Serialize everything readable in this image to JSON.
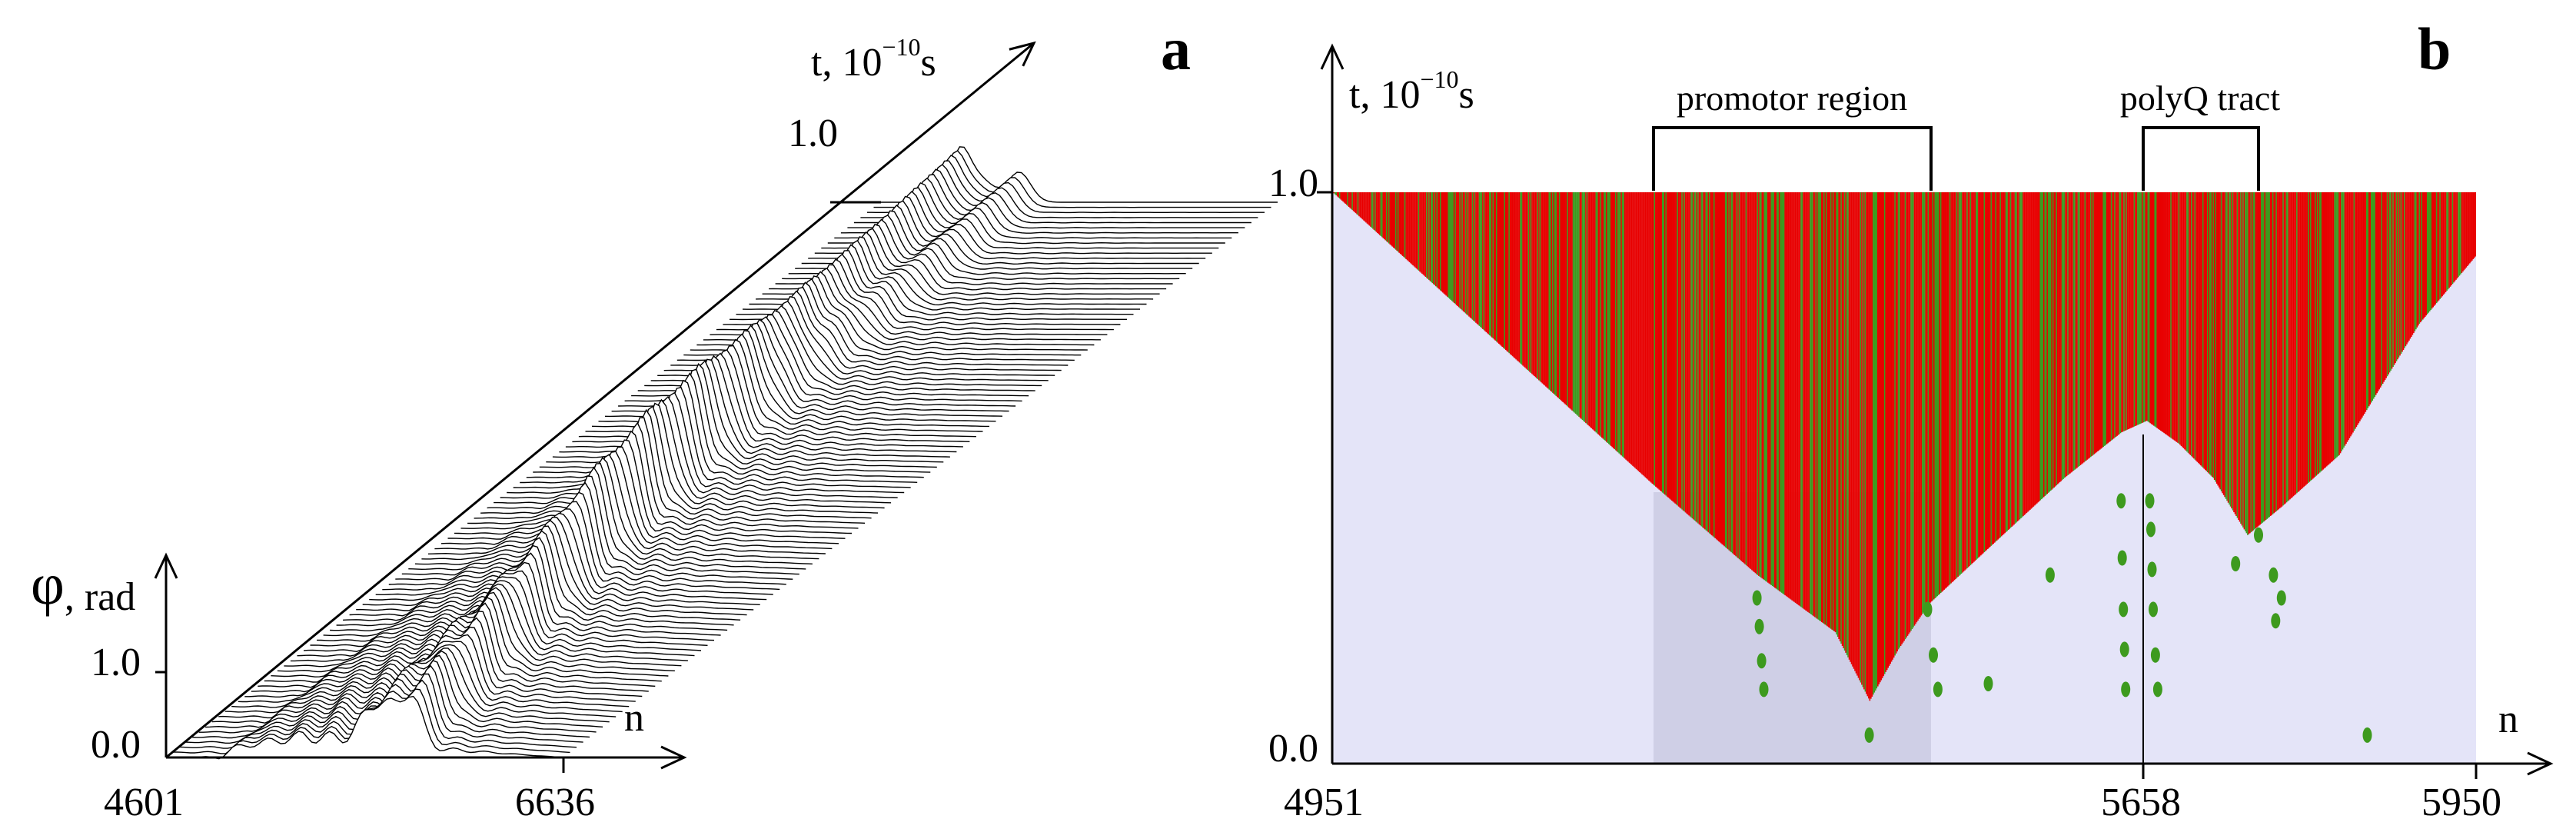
{
  "colors": {
    "background": "#e4e4f8",
    "region_shade": "#cfcfe6",
    "dynamic": "#e80000",
    "static": "#3d9a1e",
    "axes": "#000000"
  },
  "chart_data": [
    {
      "panel": "a",
      "type": "area",
      "description_type": "3d-stacked-lines",
      "x_axis": {
        "label": "n",
        "ticks": [
          "4601",
          "6636"
        ],
        "range": [
          4601,
          6636
        ]
      },
      "y_axis": {
        "label_symbol": "φ",
        "label_sub": ", rad",
        "ticks": [
          "0.0",
          "1.0"
        ],
        "range": [
          0.0,
          1.0
        ]
      },
      "t_axis": {
        "label_main": "t, 10",
        "label_exp": "−10",
        "label_unit": "s",
        "ticks": [
          "1.0"
        ],
        "range": [
          0.0,
          1.0
        ]
      },
      "series": [
        {
          "values": [
            [
              4601,
              0.0
            ],
            [
              4880,
              0.0
            ],
            [
              4950,
              0.12
            ],
            [
              5300,
              0.25
            ],
            [
              5700,
              0.18
            ],
            [
              6000,
              0.1
            ],
            [
              6636,
              0.0
            ]
          ]
        }
      ]
    },
    {
      "panel": "b",
      "type": "heatmap",
      "x_axis": {
        "label": "n",
        "ticks": [
          "4951",
          "5658",
          "5950"
        ],
        "range": [
          4951,
          5950
        ]
      },
      "y_axis": {
        "label_main": "t, 10",
        "label_exp": "−10",
        "label_unit": "s",
        "ticks": [
          "0.0",
          "1.0"
        ],
        "range": [
          0.0,
          1.0
        ]
      },
      "regions": [
        {
          "label": "promotor region",
          "start": 5230,
          "end": 5472
        },
        {
          "label": "polyQ tract",
          "start": 5658,
          "end": 5760
        }
      ],
      "front_profile": [
        [
          4951,
          1.0
        ],
        [
          5230,
          0.49
        ],
        [
          5322,
          0.33
        ],
        [
          5390,
          0.23
        ],
        [
          5420,
          0.11
        ],
        [
          5445,
          0.2
        ],
        [
          5472,
          0.28
        ],
        [
          5520,
          0.37
        ],
        [
          5590,
          0.5
        ],
        [
          5640,
          0.58
        ],
        [
          5662,
          0.6
        ],
        [
          5690,
          0.56
        ],
        [
          5720,
          0.5
        ],
        [
          5750,
          0.4
        ],
        [
          5780,
          0.45
        ],
        [
          5830,
          0.54
        ],
        [
          5900,
          0.77
        ],
        [
          5950,
          0.89
        ]
      ],
      "green_dots": [
        [
          5322,
          0.29
        ],
        [
          5324,
          0.24
        ],
        [
          5326,
          0.18
        ],
        [
          5328,
          0.13
        ],
        [
          5420,
          0.05
        ],
        [
          5471,
          0.27
        ],
        [
          5476,
          0.19
        ],
        [
          5480,
          0.13
        ],
        [
          5524,
          0.14
        ],
        [
          5578,
          0.33
        ],
        [
          5640,
          0.46
        ],
        [
          5641,
          0.36
        ],
        [
          5642,
          0.27
        ],
        [
          5643,
          0.2
        ],
        [
          5644,
          0.13
        ],
        [
          5665,
          0.46
        ],
        [
          5666,
          0.41
        ],
        [
          5667,
          0.34
        ],
        [
          5668,
          0.27
        ],
        [
          5670,
          0.19
        ],
        [
          5672,
          0.13
        ],
        [
          5740,
          0.35
        ],
        [
          5773,
          0.33
        ],
        [
          5775,
          0.25
        ],
        [
          5780,
          0.29
        ],
        [
          5760,
          0.4
        ],
        [
          5855,
          0.05
        ]
      ]
    }
  ]
}
